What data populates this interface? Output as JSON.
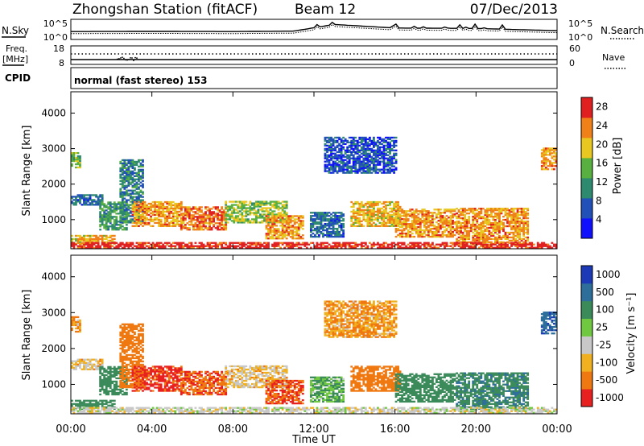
{
  "header": {
    "station_title": "Zhongshan Station (fitACF)",
    "beam_label": "Beam 12",
    "date_label": "07/Dec/2013"
  },
  "summary_panels": {
    "nsky_label": "N.Sky",
    "nsearch_label": "N.Search",
    "count_tick_top": "10^5",
    "count_tick_bottom": "10^0",
    "freq_label_line1": "Freq.",
    "freq_label_line2": "[MHz]",
    "freq_tick_top": "18",
    "freq_tick_bottom": "8",
    "nave_label": "Nave",
    "nave_tick_top": "60",
    "nave_tick_bottom": "0",
    "cpid_label": "CPID",
    "cpid_text": "normal (fast stereo) 153"
  },
  "power_panel": {
    "ylabel": "Slant Range [km]",
    "yticks": [
      "1000",
      "2000",
      "3000",
      "4000"
    ],
    "colorbar_label": "Power [dB]",
    "colorbar_ticks": [
      "4",
      "8",
      "12",
      "16",
      "20",
      "24",
      "28"
    ],
    "colorbar_colors": [
      "#1010ff",
      "#2050b8",
      "#2e8a6e",
      "#58b040",
      "#e8c820",
      "#f08018",
      "#e02020"
    ]
  },
  "velocity_panel": {
    "ylabel": "Slant Range [km]",
    "yticks": [
      "1000",
      "2000",
      "3000",
      "4000"
    ],
    "colorbar_label": "Velocity [m s⁻¹]",
    "colorbar_ticks": [
      "1000",
      "500",
      "100",
      "25",
      "-25",
      "-100",
      "-500",
      "-1000"
    ],
    "colorbar_colors": [
      "#1c3ab8",
      "#2e6e9a",
      "#3a8a5a",
      "#70c840",
      "#c8c8c8",
      "#f0b020",
      "#f07810",
      "#e82020"
    ],
    "ground_scatter_color": "#b0b0b0"
  },
  "xaxis": {
    "label": "Time UT",
    "ticks": [
      "00:00",
      "04:00",
      "08:00",
      "12:00",
      "16:00",
      "20:00",
      "00:00"
    ]
  },
  "chart_data": {
    "type": "heatmap",
    "x_range_hours": [
      0,
      24
    ],
    "y_range_km": [
      180,
      4600
    ],
    "power_scale_db": [
      0,
      31
    ],
    "velocity_scale_ms": [
      -1200,
      1200
    ],
    "echo_regions": [
      {
        "t0": 0.0,
        "t1": 0.5,
        "r0": 2450,
        "r1": 2900,
        "power": 14,
        "velocity": -60
      },
      {
        "t0": 0.0,
        "t1": 1.6,
        "r0": 1400,
        "r1": 1700,
        "power": 8,
        "velocity": -25
      },
      {
        "t0": 0.0,
        "t1": 2.2,
        "r0": 300,
        "r1": 560,
        "power": 20,
        "velocity": 150
      },
      {
        "t0": 1.4,
        "t1": 2.8,
        "r0": 700,
        "r1": 1500,
        "power": 12,
        "velocity": 120
      },
      {
        "t0": 2.4,
        "t1": 3.6,
        "r0": 900,
        "r1": 2700,
        "power": 10,
        "velocity": -120
      },
      {
        "t0": 3.0,
        "t1": 5.4,
        "r0": 800,
        "r1": 1500,
        "power": 22,
        "velocity": -350
      },
      {
        "t0": 5.4,
        "t1": 7.6,
        "r0": 700,
        "r1": 1350,
        "power": 24,
        "velocity": -280
      },
      {
        "t0": 7.6,
        "t1": 10.6,
        "r0": 900,
        "r1": 1500,
        "power": 16,
        "velocity": -25
      },
      {
        "t0": 9.6,
        "t1": 11.4,
        "r0": 450,
        "r1": 1100,
        "power": 22,
        "velocity": -300
      },
      {
        "t0": 11.8,
        "t1": 13.4,
        "r0": 500,
        "r1": 1200,
        "power": 8,
        "velocity": 60
      },
      {
        "t0": 13.8,
        "t1": 16.2,
        "r0": 800,
        "r1": 1500,
        "power": 20,
        "velocity": -150
      },
      {
        "t0": 16.0,
        "t1": 19.0,
        "r0": 500,
        "r1": 1300,
        "power": 22,
        "velocity": 130
      },
      {
        "t0": 19.0,
        "t1": 22.6,
        "r0": 300,
        "r1": 1300,
        "power": 22,
        "velocity": 250
      },
      {
        "t0": 23.2,
        "t1": 24.0,
        "r0": 2400,
        "r1": 3000,
        "power": 22,
        "velocity": 600
      },
      {
        "t0": 12.5,
        "t1": 16.0,
        "r0": 2300,
        "r1": 3300,
        "power": 6,
        "velocity": -60
      },
      {
        "t0": 0.0,
        "t1": 24.0,
        "r0": 190,
        "r1": 330,
        "power": 28,
        "velocity": 0
      }
    ],
    "nsky_series": [
      {
        "t": 0,
        "v": 0.8
      },
      {
        "t": 4,
        "v": 0.82
      },
      {
        "t": 8,
        "v": 0.8
      },
      {
        "t": 11,
        "v": 0.85
      },
      {
        "t": 13,
        "v": 1.6
      },
      {
        "t": 16,
        "v": 1.2
      },
      {
        "t": 20,
        "v": 1.15
      },
      {
        "t": 24,
        "v": 0.9
      }
    ],
    "frequency_mhz": [
      {
        "t": 0,
        "v": 10.2
      },
      {
        "t": 24,
        "v": 10.2
      }
    ],
    "nave": [
      {
        "t": 0,
        "v": 20
      },
      {
        "t": 24,
        "v": 20
      }
    ]
  }
}
